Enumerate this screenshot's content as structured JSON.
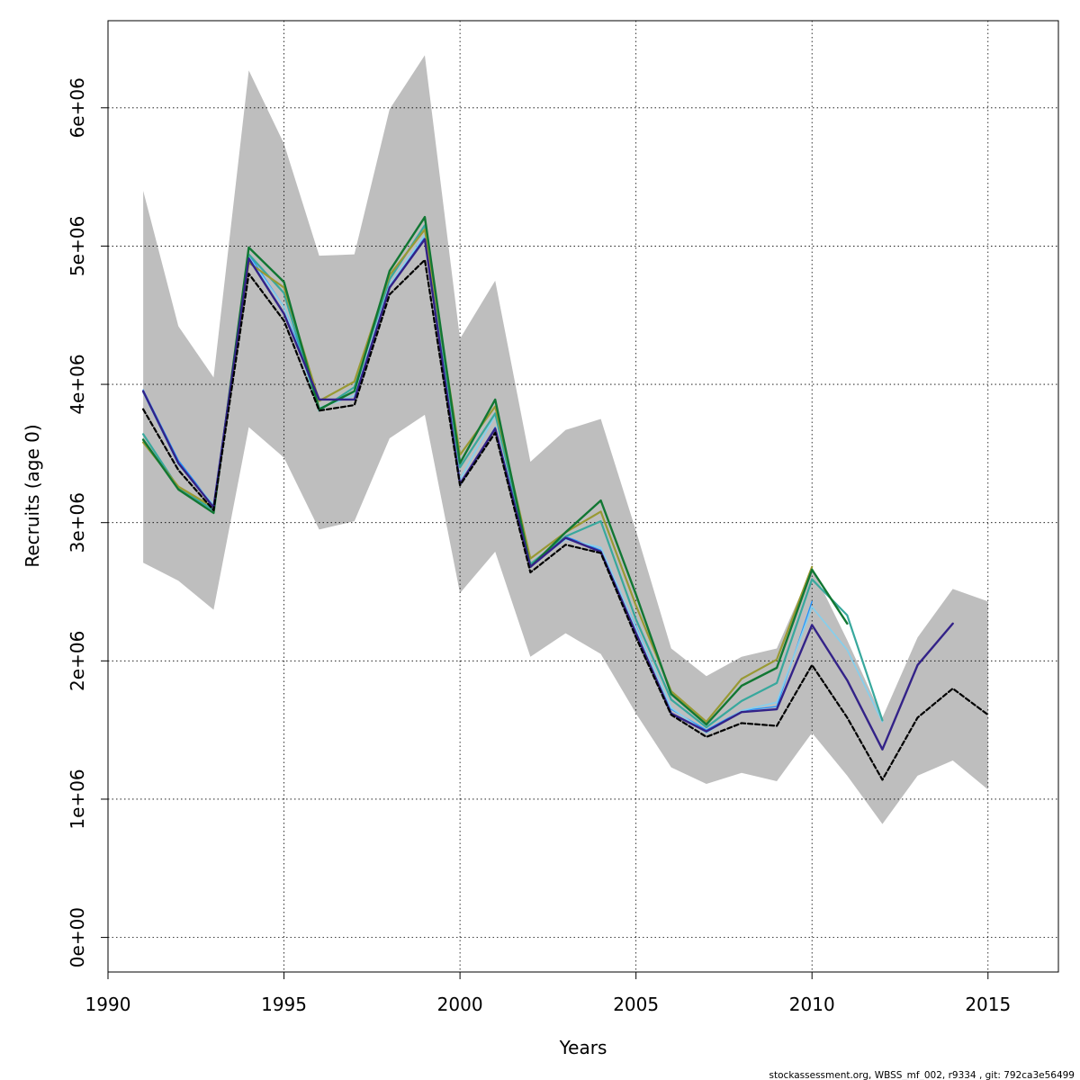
{
  "chart_data": {
    "type": "line",
    "xlabel": "Years",
    "ylabel": "Recruits (age 0)",
    "xlim": [
      1990,
      2017
    ],
    "ylim": [
      -250000,
      6630000
    ],
    "x_ticks": [
      1990,
      1995,
      2000,
      2005,
      2010,
      2015
    ],
    "x_tick_labels": [
      "1990",
      "1995",
      "2000",
      "2005",
      "2010",
      "2015"
    ],
    "y_ticks": [
      0,
      1000000,
      2000000,
      3000000,
      4000000,
      5000000,
      6000000
    ],
    "y_tick_labels": [
      "0e+00",
      "1e+06",
      "2e+06",
      "3e+06",
      "4e+06",
      "5e+06",
      "6e+06"
    ],
    "grid": true,
    "confidence_band": {
      "color": "#bebebe",
      "x": [
        1991,
        1992,
        1993,
        1994,
        1995,
        1996,
        1997,
        1998,
        1999,
        2000,
        2001,
        2002,
        2003,
        2004,
        2005,
        2006,
        2007,
        2008,
        2009,
        2010,
        2011,
        2012,
        2013,
        2014,
        2015
      ],
      "upper": [
        5400000,
        4420000,
        4050000,
        6270000,
        5740000,
        4930000,
        4940000,
        5990000,
        6380000,
        4330000,
        4750000,
        3440000,
        3670000,
        3750000,
        2940000,
        2090000,
        1890000,
        2030000,
        2090000,
        2670000,
        2150000,
        1590000,
        2170000,
        2520000,
        2430000
      ],
      "lower": [
        2710000,
        2580000,
        2370000,
        3690000,
        3470000,
        2950000,
        3010000,
        3610000,
        3780000,
        2490000,
        2790000,
        2030000,
        2200000,
        2050000,
        1620000,
        1230000,
        1110000,
        1190000,
        1130000,
        1480000,
        1170000,
        820000,
        1170000,
        1280000,
        1070000
      ]
    },
    "series": [
      {
        "color": "#1e90ff",
        "width": 1.3,
        "dash": "",
        "x": [
          1991,
          1992,
          1993,
          1994,
          1995,
          1996,
          1997,
          1998,
          1999,
          2000,
          2001,
          2002,
          2003,
          2004,
          2005,
          2006,
          2007,
          2008,
          2009,
          2010
        ],
        "values": [
          3960000,
          3450000,
          3120000,
          4940000,
          4560000,
          3890000,
          3890000,
          4700000,
          5070000,
          3270000,
          3690000,
          2700000,
          2900000,
          2800000,
          2250000,
          1650000,
          1500000,
          1640000,
          1670000,
          2430000
        ]
      },
      {
        "color": "#87ceeb",
        "width": 1.8,
        "dash": "",
        "x": [
          1991,
          1992,
          1993,
          1994,
          1995,
          1996,
          1997,
          1998,
          1999,
          2000,
          2001,
          2002,
          2003,
          2004,
          2005,
          2006,
          2007,
          2008,
          2009,
          2010,
          2011,
          2012
        ],
        "values": [
          3940000,
          3420000,
          3130000,
          4920000,
          4560000,
          3830000,
          3920000,
          4720000,
          5080000,
          3310000,
          3780000,
          2690000,
          2880000,
          2820000,
          2240000,
          1660000,
          1480000,
          1640000,
          1700000,
          2390000,
          2080000,
          1560000
        ]
      },
      {
        "color": "#38a89d",
        "width": 2.2,
        "dash": "",
        "x": [
          1991,
          1992,
          1993,
          1994,
          1995,
          1996,
          1997,
          1998,
          1999,
          2000,
          2001,
          2002,
          2003,
          2004,
          2005,
          2006,
          2007,
          2008,
          2009,
          2010,
          2011,
          2012
        ],
        "values": [
          3640000,
          3250000,
          3090000,
          4940000,
          4660000,
          3810000,
          3980000,
          4760000,
          5150000,
          3400000,
          3790000,
          2700000,
          2900000,
          3010000,
          2300000,
          1720000,
          1520000,
          1710000,
          1840000,
          2590000,
          2330000,
          1570000
        ]
      },
      {
        "color": "#999933",
        "width": 2.2,
        "dash": "",
        "x": [
          1991,
          1992,
          1993,
          1994,
          1995,
          1996,
          1997,
          1998,
          1999,
          2000,
          2001,
          2002,
          2003,
          2004,
          2005,
          2006,
          2007,
          2008,
          2009,
          2010
        ],
        "values": [
          3580000,
          3260000,
          3110000,
          4880000,
          4700000,
          3880000,
          4020000,
          4790000,
          5120000,
          3490000,
          3840000,
          2740000,
          2930000,
          3080000,
          2400000,
          1780000,
          1560000,
          1870000,
          2010000,
          2680000
        ]
      },
      {
        "color": "#117733",
        "width": 2.4,
        "dash": "",
        "x": [
          1991,
          1992,
          1993,
          1994,
          1995,
          1996,
          1997,
          1998,
          1999,
          2000,
          2001,
          2002,
          2003,
          2004,
          2005,
          2006,
          2007,
          2008,
          2009,
          2010,
          2011
        ],
        "values": [
          3600000,
          3240000,
          3070000,
          4990000,
          4740000,
          3820000,
          3950000,
          4820000,
          5210000,
          3430000,
          3890000,
          2680000,
          2930000,
          3160000,
          2480000,
          1760000,
          1540000,
          1820000,
          1950000,
          2660000,
          2270000
        ]
      },
      {
        "color": "#332288",
        "width": 2.4,
        "dash": "",
        "x": [
          1991,
          1992,
          1993,
          1994,
          1995,
          1996,
          1997,
          1998,
          1999,
          2000,
          2001,
          2002,
          2003,
          2004,
          2005,
          2006,
          2007,
          2008,
          2009,
          2010,
          2011,
          2012,
          2013,
          2014
        ],
        "values": [
          3950000,
          3430000,
          3110000,
          4910000,
          4510000,
          3890000,
          3890000,
          4700000,
          5050000,
          3280000,
          3680000,
          2680000,
          2890000,
          2790000,
          2200000,
          1620000,
          1490000,
          1630000,
          1650000,
          2260000,
          1860000,
          1360000,
          1970000,
          2270000
        ]
      },
      {
        "color": "#000000",
        "width": 2.2,
        "dash": "5,3",
        "x": [
          1991,
          1992,
          1993,
          1994,
          1995,
          1996,
          1997,
          1998,
          1999,
          2000,
          2001,
          2002,
          2003,
          2004,
          2005,
          2006,
          2007,
          2008,
          2009,
          2010,
          2011,
          2012,
          2013,
          2014,
          2015
        ],
        "values": [
          3820000,
          3380000,
          3090000,
          4800000,
          4460000,
          3810000,
          3850000,
          4650000,
          4900000,
          3270000,
          3650000,
          2640000,
          2840000,
          2780000,
          2170000,
          1610000,
          1450000,
          1550000,
          1530000,
          1970000,
          1590000,
          1140000,
          1590000,
          1800000,
          1610000
        ]
      }
    ]
  },
  "footer": {
    "text": "stockassessment.org, WBSS_mf_002, r9334 , git: 792ca3e56499"
  }
}
